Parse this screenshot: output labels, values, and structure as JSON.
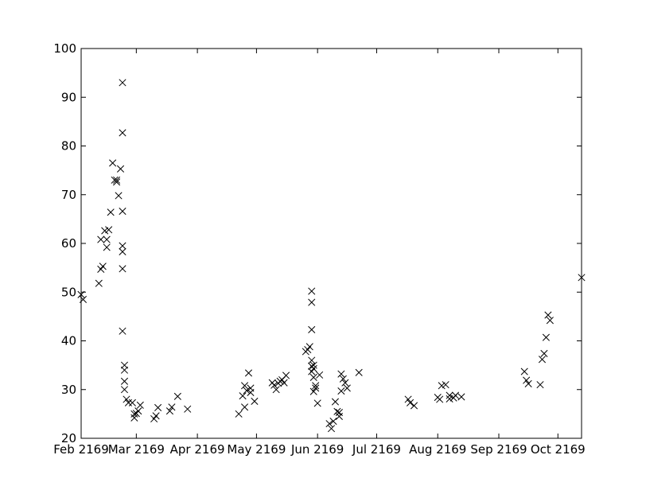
{
  "chart_data": {
    "type": "scatter",
    "title": "",
    "xlabel": "",
    "ylabel": "",
    "marker": "x",
    "marker_color": "#000000",
    "grid": false,
    "xlim": [
      "2169-02-01",
      "2169-10-13"
    ],
    "ylim": [
      20,
      100
    ],
    "y_ticks": [
      20,
      30,
      40,
      50,
      60,
      70,
      80,
      90,
      100
    ],
    "x_ticks": [
      {
        "date": "2169-02-01",
        "label": "Feb 2169"
      },
      {
        "date": "2169-03-01",
        "label": "Mar 2169"
      },
      {
        "date": "2169-04-01",
        "label": "Apr 2169"
      },
      {
        "date": "2169-05-01",
        "label": "May 2169"
      },
      {
        "date": "2169-06-01",
        "label": "Jun 2169"
      },
      {
        "date": "2169-07-01",
        "label": "Jul 2169"
      },
      {
        "date": "2169-08-01",
        "label": "Aug 2169"
      },
      {
        "date": "2169-09-01",
        "label": "Sep 2169"
      },
      {
        "date": "2169-10-01",
        "label": "Oct 2169"
      }
    ],
    "points": [
      [
        "2169-02-01",
        49.5
      ],
      [
        "2169-02-02",
        48.5
      ],
      [
        "2169-02-10",
        51.8
      ],
      [
        "2169-02-11",
        54.7
      ],
      [
        "2169-02-11",
        60.8
      ],
      [
        "2169-02-12",
        55.3
      ],
      [
        "2169-02-13",
        62.6
      ],
      [
        "2169-02-14",
        59.2
      ],
      [
        "2169-02-14",
        60.8
      ],
      [
        "2169-02-15",
        62.8
      ],
      [
        "2169-02-16",
        66.4
      ],
      [
        "2169-02-17",
        76.5
      ],
      [
        "2169-02-18",
        73.0
      ],
      [
        "2169-02-19",
        72.6
      ],
      [
        "2169-02-19",
        73.0
      ],
      [
        "2169-02-20",
        69.8
      ],
      [
        "2169-02-21",
        75.3
      ],
      [
        "2169-02-22",
        93.0
      ],
      [
        "2169-02-22",
        82.7
      ],
      [
        "2169-02-22",
        66.6
      ],
      [
        "2169-02-22",
        59.5
      ],
      [
        "2169-02-22",
        58.3
      ],
      [
        "2169-02-22",
        54.8
      ],
      [
        "2169-02-22",
        42.0
      ],
      [
        "2169-02-23",
        35.0
      ],
      [
        "2169-02-23",
        34.0
      ],
      [
        "2169-02-23",
        31.7
      ],
      [
        "2169-02-23",
        30.0
      ],
      [
        "2169-02-24",
        28.0
      ],
      [
        "2169-02-25",
        27.3
      ],
      [
        "2169-02-27",
        27.3
      ],
      [
        "2169-02-28",
        25.0
      ],
      [
        "2169-02-28",
        24.2
      ],
      [
        "2169-03-01",
        25.1
      ],
      [
        "2169-03-02",
        25.6
      ],
      [
        "2169-03-03",
        26.8
      ],
      [
        "2169-03-10",
        24.0
      ],
      [
        "2169-03-11",
        24.6
      ],
      [
        "2169-03-12",
        26.3
      ],
      [
        "2169-03-18",
        25.6
      ],
      [
        "2169-03-19",
        26.4
      ],
      [
        "2169-03-22",
        28.6
      ],
      [
        "2169-03-27",
        26.0
      ],
      [
        "2169-04-22",
        25.0
      ],
      [
        "2169-04-24",
        28.7
      ],
      [
        "2169-04-25",
        26.4
      ],
      [
        "2169-04-25",
        30.8
      ],
      [
        "2169-04-26",
        29.8
      ],
      [
        "2169-04-27",
        33.4
      ],
      [
        "2169-04-28",
        30.3
      ],
      [
        "2169-04-28",
        29.4
      ],
      [
        "2169-04-30",
        27.6
      ],
      [
        "2169-05-09",
        31.4
      ],
      [
        "2169-05-10",
        30.9
      ],
      [
        "2169-05-11",
        30.0
      ],
      [
        "2169-05-12",
        31.3
      ],
      [
        "2169-05-13",
        31.7
      ],
      [
        "2169-05-14",
        32.0
      ],
      [
        "2169-05-15",
        31.4
      ],
      [
        "2169-05-16",
        32.9
      ],
      [
        "2169-05-26",
        37.8
      ],
      [
        "2169-05-27",
        38.2
      ],
      [
        "2169-05-28",
        38.8
      ],
      [
        "2169-05-29",
        42.3
      ],
      [
        "2169-05-29",
        50.2
      ],
      [
        "2169-05-29",
        47.9
      ],
      [
        "2169-05-29",
        36.0
      ],
      [
        "2169-05-29",
        34.8
      ],
      [
        "2169-05-29",
        33.7
      ],
      [
        "2169-05-30",
        34.3
      ],
      [
        "2169-05-30",
        35.0
      ],
      [
        "2169-05-30",
        32.5
      ],
      [
        "2169-05-30",
        29.6
      ],
      [
        "2169-05-31",
        30.8
      ],
      [
        "2169-05-31",
        30.3
      ],
      [
        "2169-06-01",
        27.2
      ],
      [
        "2169-06-02",
        33.0
      ],
      [
        "2169-06-07",
        23.0
      ],
      [
        "2169-06-08",
        22.0
      ],
      [
        "2169-06-09",
        23.5
      ],
      [
        "2169-06-10",
        27.5
      ],
      [
        "2169-06-11",
        25.5
      ],
      [
        "2169-06-12",
        24.5
      ],
      [
        "2169-06-12",
        25.3
      ],
      [
        "2169-06-13",
        29.7
      ],
      [
        "2169-06-13",
        33.2
      ],
      [
        "2169-06-14",
        32.2
      ],
      [
        "2169-06-15",
        31.4
      ],
      [
        "2169-06-16",
        30.3
      ],
      [
        "2169-06-22",
        33.5
      ],
      [
        "2169-07-17",
        28.0
      ],
      [
        "2169-07-18",
        27.3
      ],
      [
        "2169-07-20",
        26.7
      ],
      [
        "2169-08-01",
        28.4
      ],
      [
        "2169-08-02",
        28.0
      ],
      [
        "2169-08-03",
        30.8
      ],
      [
        "2169-08-05",
        31.0
      ],
      [
        "2169-08-07",
        28.8
      ],
      [
        "2169-08-07",
        28.1
      ],
      [
        "2169-08-09",
        28.3
      ],
      [
        "2169-08-10",
        28.8
      ],
      [
        "2169-08-13",
        28.5
      ],
      [
        "2169-09-14",
        33.7
      ],
      [
        "2169-09-15",
        31.9
      ],
      [
        "2169-09-16",
        31.2
      ],
      [
        "2169-09-22",
        31.0
      ],
      [
        "2169-09-23",
        36.2
      ],
      [
        "2169-09-24",
        37.4
      ],
      [
        "2169-09-25",
        40.7
      ],
      [
        "2169-09-26",
        45.3
      ],
      [
        "2169-09-27",
        44.2
      ],
      [
        "2169-10-13",
        53.0
      ]
    ]
  }
}
